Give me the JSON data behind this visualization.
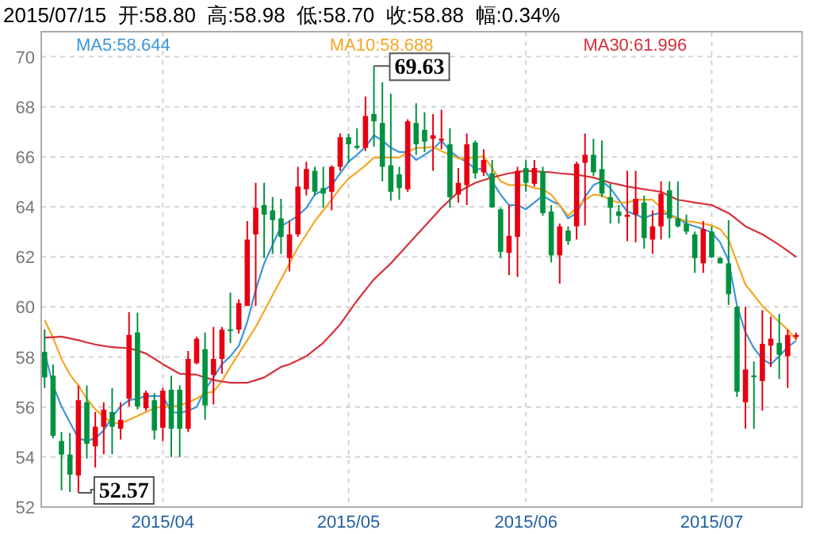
{
  "chart_data": {
    "type": "candlestick",
    "title": "2015/07/15  开:58.80  高:58.98  低:58.70  收:58.88  幅:0.34%",
    "categories": [
      null,
      null,
      null,
      null,
      null,
      null,
      null,
      null,
      null,
      null,
      null,
      null,
      null,
      null,
      "2015/04",
      null,
      null,
      null,
      null,
      null,
      null,
      null,
      null,
      null,
      null,
      null,
      null,
      null,
      null,
      null,
      null,
      null,
      null,
      null,
      null,
      null,
      "2015/05",
      null,
      null,
      null,
      null,
      null,
      null,
      null,
      null,
      null,
      null,
      null,
      null,
      null,
      null,
      null,
      null,
      null,
      null,
      null,
      null,
      "2015/06",
      null,
      null,
      null,
      null,
      null,
      null,
      null,
      null,
      null,
      null,
      null,
      null,
      null,
      null,
      null,
      null,
      null,
      null,
      null,
      null,
      null,
      "2015/07",
      null,
      null,
      null,
      null,
      null,
      null,
      null,
      null,
      null,
      null
    ],
    "ohlc": [
      [
        58.2,
        59.1,
        56.76,
        57.18
      ],
      [
        57.25,
        57.7,
        54.75,
        54.85
      ],
      [
        54.64,
        55.0,
        52.67,
        54.1
      ],
      [
        54.1,
        54.96,
        52.6,
        53.3
      ],
      [
        53.26,
        56.86,
        52.57,
        56.27
      ],
      [
        56.19,
        56.86,
        53.94,
        54.53
      ],
      [
        54.43,
        55.8,
        53.58,
        55.21
      ],
      [
        55.21,
        56.19,
        54.11,
        55.89
      ],
      [
        55.8,
        56.76,
        54.11,
        55.21
      ],
      [
        55.13,
        56.19,
        54.7,
        55.49
      ],
      [
        56.33,
        59.79,
        56.02,
        58.88
      ],
      [
        58.98,
        59.77,
        55.91,
        56.02
      ],
      [
        55.95,
        56.65,
        55.85,
        56.57
      ],
      [
        56.27,
        56.55,
        54.7,
        55.06
      ],
      [
        55.17,
        56.76,
        54.64,
        56.65
      ],
      [
        56.69,
        57.25,
        54.0,
        55.13
      ],
      [
        56.69,
        56.86,
        54.0,
        55.13
      ],
      [
        55.13,
        58.24,
        55.0,
        57.92
      ],
      [
        57.75,
        58.81,
        57.71,
        58.73
      ],
      [
        58.31,
        58.98,
        55.49,
        56.06
      ],
      [
        57.29,
        59.2,
        56.1,
        57.92
      ],
      [
        57.92,
        59.2,
        57.33,
        59.09
      ],
      [
        59.1,
        60.57,
        58.56,
        59.05
      ],
      [
        59.09,
        60.3,
        58.94,
        60.15
      ],
      [
        60.04,
        63.43,
        60.04,
        62.69
      ],
      [
        62.9,
        64.96,
        60.04,
        63.96
      ],
      [
        64.07,
        64.96,
        61.95,
        63.69
      ],
      [
        63.86,
        64.39,
        62.12,
        63.47
      ],
      [
        63.54,
        64.32,
        62.12,
        62.8
      ],
      [
        61.95,
        63.43,
        61.42,
        62.9
      ],
      [
        62.9,
        65.6,
        62.8,
        64.81
      ],
      [
        64.7,
        65.8,
        64.45,
        65.51
      ],
      [
        65.44,
        65.6,
        64.45,
        64.6
      ],
      [
        64.75,
        65.6,
        63.96,
        64.53
      ],
      [
        64.6,
        65.66,
        63.86,
        65.6
      ],
      [
        65.6,
        66.93,
        65.44,
        66.78
      ],
      [
        66.78,
        66.93,
        65.76,
        66.5
      ],
      [
        66.44,
        67.14,
        66.3,
        66.36
      ],
      [
        66.36,
        68.41,
        66.23,
        67.63
      ],
      [
        67.71,
        69.63,
        66.4,
        67.42
      ],
      [
        67.35,
        68.98,
        65.02,
        65.6
      ],
      [
        65.66,
        68.52,
        64.24,
        64.6
      ],
      [
        65.3,
        65.6,
        64.28,
        64.75
      ],
      [
        64.7,
        67.5,
        64.6,
        67.42
      ],
      [
        67.35,
        68.14,
        66.08,
        66.5
      ],
      [
        67.08,
        67.78,
        66.19,
        66.61
      ],
      [
        66.72,
        67.71,
        65.44,
        66.86
      ],
      [
        66.65,
        67.88,
        66.3,
        66.72
      ],
      [
        66.5,
        67.14,
        63.96,
        64.39
      ],
      [
        64.49,
        65.55,
        64.17,
        64.96
      ],
      [
        64.87,
        66.93,
        64.07,
        66.5
      ],
      [
        66.57,
        66.65,
        65.13,
        65.34
      ],
      [
        65.38,
        66.3,
        65.23,
        65.87
      ],
      [
        65.34,
        65.87,
        63.96,
        63.98
      ],
      [
        63.9,
        63.96,
        61.95,
        62.2
      ],
      [
        62.16,
        64.07,
        61.27,
        62.84
      ],
      [
        62.8,
        65.6,
        61.2,
        65.44
      ],
      [
        65.55,
        65.87,
        64.6,
        64.96
      ],
      [
        64.92,
        65.87,
        64.81,
        65.55
      ],
      [
        65.42,
        65.6,
        63.64,
        63.75
      ],
      [
        63.81,
        64.07,
        61.78,
        62.06
      ],
      [
        62.06,
        63.33,
        60.93,
        63.22
      ],
      [
        63.05,
        63.22,
        62.48,
        62.63
      ],
      [
        63.22,
        65.8,
        62.69,
        65.72
      ],
      [
        65.76,
        66.93,
        63.26,
        66.08
      ],
      [
        66.08,
        66.72,
        65.23,
        65.38
      ],
      [
        65.51,
        66.65,
        64.39,
        64.53
      ],
      [
        64.39,
        64.92,
        63.33,
        63.96
      ],
      [
        63.81,
        64.07,
        63.33,
        63.64
      ],
      [
        63.6,
        65.44,
        62.63,
        63.69
      ],
      [
        63.69,
        65.44,
        62.58,
        64.32
      ],
      [
        64.17,
        64.45,
        62.33,
        62.75
      ],
      [
        62.69,
        63.86,
        62.12,
        63.22
      ],
      [
        63.22,
        65.02,
        62.69,
        64.53
      ],
      [
        64.66,
        65.02,
        62.75,
        63.54
      ],
      [
        63.54,
        65.02,
        63.18,
        63.22
      ],
      [
        63.33,
        63.69,
        62.9,
        63.01
      ],
      [
        62.9,
        63.01,
        61.36,
        61.95
      ],
      [
        61.74,
        63.43,
        61.36,
        63.11
      ],
      [
        63.01,
        63.22,
        61.95,
        61.99
      ],
      [
        61.95,
        61.99,
        61.74,
        61.74
      ],
      [
        61.74,
        63.47,
        60.08,
        60.51
      ],
      [
        60.0,
        60.04,
        56.4,
        56.61
      ],
      [
        56.19,
        60.0,
        55.13,
        57.5
      ],
      [
        57.26,
        57.82,
        55.13,
        57.22
      ],
      [
        57.04,
        59.87,
        55.85,
        58.52
      ],
      [
        58.45,
        59.62,
        57.6,
        58.73
      ],
      [
        58.56,
        59.72,
        57.12,
        58.09
      ],
      [
        58.03,
        59.09,
        56.76,
        58.88
      ],
      [
        58.8,
        58.98,
        58.7,
        58.88
      ]
    ],
    "colors": [
      "#00923f",
      "#00923f",
      "#00923f",
      "#00923f",
      "#e60012",
      "#00923f",
      "#e60012",
      "#e60012",
      "#00923f",
      "#e60012",
      "#e60012",
      "#00923f",
      "#e60012",
      "#00923f",
      "#e60012",
      "#00923f",
      "#00923f",
      "#e60012",
      "#e60012",
      "#00923f",
      "#e60012",
      "#e60012",
      "#00923f",
      "#e60012",
      "#e60012",
      "#e60012",
      "#00923f",
      "#00923f",
      "#00923f",
      "#e60012",
      "#e60012",
      "#e60012",
      "#00923f",
      "#00923f",
      "#e60012",
      "#e60012",
      "#00923f",
      "#00923f",
      "#e60012",
      "#00923f",
      "#00923f",
      "#00923f",
      "#00923f",
      "#e60012",
      "#00923f",
      "#00923f",
      "#e60012",
      "#e60012",
      "#00923f",
      "#e60012",
      "#e60012",
      "#00923f",
      "#e60012",
      "#00923f",
      "#00923f",
      "#e60012",
      "#e60012",
      "#00923f",
      "#e60012",
      "#00923f",
      "#00923f",
      "#e60012",
      "#00923f",
      "#e60012",
      "#e60012",
      "#00923f",
      "#00923f",
      "#00923f",
      "#00923f",
      "#e60012",
      "#e60012",
      "#00923f",
      "#e60012",
      "#e60012",
      "#00923f",
      "#00923f",
      "#00923f",
      "#00923f",
      "#e60012",
      "#00923f",
      "#00923f",
      "#00923f",
      "#00923f",
      "#e60012",
      "#00923f",
      "#e60012",
      "#e60012",
      "#00923f",
      "#e60012",
      "#e60012"
    ],
    "series": [
      {
        "name": "MA5:58.644",
        "type": "line",
        "color": "#3d95d8",
        "values": [
          58.2,
          56.86,
          56.02,
          55.38,
          54.75,
          54.64,
          54.75,
          55.06,
          55.6,
          56.02,
          56.27,
          56.33,
          56.44,
          56.44,
          56.44,
          55.8,
          55.76,
          55.85,
          56.0,
          56.69,
          57.18,
          57.71,
          58.03,
          58.45,
          59.4,
          60.68,
          61.74,
          62.48,
          63.22,
          63.43,
          63.64,
          63.96,
          64.49,
          64.66,
          64.87,
          65.34,
          65.8,
          66.08,
          66.4,
          66.86,
          66.65,
          66.36,
          66.19,
          66.19,
          65.87,
          66.08,
          66.3,
          66.65,
          66.23,
          65.97,
          65.8,
          65.51,
          65.51,
          65.02,
          64.49,
          64.07,
          64.07,
          63.9,
          64.17,
          64.45,
          64.24,
          64.07,
          63.54,
          63.75,
          64.39,
          64.87,
          65.02,
          64.75,
          64.28,
          63.81,
          63.69,
          63.54,
          63.69,
          63.75,
          63.69,
          63.54,
          63.33,
          63.22,
          63.11,
          62.97,
          62.58,
          61.84,
          60.04,
          58.98,
          58.35,
          57.92,
          57.71,
          58.03,
          58.39,
          58.644
        ]
      },
      {
        "name": "MA10:58.688",
        "type": "line",
        "color": "#f5a623",
        "values": [
          59.47,
          58.77,
          57.92,
          57.29,
          56.86,
          56.33,
          55.91,
          55.6,
          55.38,
          55.34,
          55.49,
          55.64,
          55.8,
          55.95,
          56.02,
          56.02,
          56.06,
          56.19,
          56.33,
          56.55,
          56.61,
          57.03,
          57.6,
          58.14,
          58.67,
          59.2,
          59.83,
          60.47,
          61.1,
          61.74,
          62.37,
          62.9,
          63.43,
          63.86,
          64.28,
          64.75,
          65.13,
          65.38,
          65.66,
          65.97,
          65.97,
          65.97,
          65.97,
          66.19,
          66.36,
          66.36,
          66.4,
          66.23,
          66.08,
          65.93,
          65.93,
          65.97,
          66.02,
          65.55,
          65.02,
          64.87,
          64.87,
          64.87,
          64.75,
          64.7,
          64.49,
          64.07,
          63.64,
          63.96,
          64.28,
          64.49,
          64.45,
          64.28,
          64.17,
          64.17,
          64.28,
          64.28,
          64.28,
          63.96,
          63.64,
          63.54,
          63.43,
          63.39,
          63.33,
          63.26,
          63.11,
          62.69,
          61.78,
          60.89,
          60.47,
          60.04,
          59.72,
          59.4,
          59.09,
          58.688
        ]
      },
      {
        "name": "MA30:61.996",
        "type": "line",
        "color": "#d5303a",
        "values": [
          58.77,
          58.79,
          58.81,
          58.74,
          58.67,
          58.58,
          58.5,
          58.44,
          58.39,
          58.37,
          58.35,
          58.25,
          58.14,
          57.93,
          57.71,
          57.52,
          57.33,
          57.31,
          57.29,
          57.18,
          57.08,
          57.02,
          56.97,
          56.97,
          56.97,
          57.07,
          57.18,
          57.39,
          57.6,
          57.71,
          57.87,
          58.03,
          58.3,
          58.56,
          58.93,
          59.3,
          59.78,
          60.25,
          60.68,
          61.1,
          61.42,
          61.74,
          62.11,
          62.48,
          62.85,
          63.22,
          63.59,
          63.96,
          64.28,
          64.6,
          64.78,
          64.96,
          65.07,
          65.17,
          65.26,
          65.34,
          65.39,
          65.44,
          65.42,
          65.4,
          65.38,
          65.34,
          65.31,
          65.28,
          65.23,
          65.17,
          65.07,
          64.96,
          64.89,
          64.81,
          64.76,
          64.7,
          64.65,
          64.6,
          64.44,
          64.28,
          64.23,
          64.17,
          64.12,
          64.07,
          63.91,
          63.75,
          63.49,
          63.22,
          63.06,
          62.9,
          62.69,
          62.48,
          62.24,
          61.996
        ]
      }
    ],
    "ylim": [
      52,
      71
    ],
    "yticks": [
      52,
      54,
      56,
      58,
      60,
      62,
      64,
      66,
      68,
      70
    ],
    "grid": true,
    "legend": "top",
    "annotations": [
      {
        "text": "69.63",
        "y": 69.63
      },
      {
        "text": "52.57",
        "y": 52.57
      }
    ]
  }
}
